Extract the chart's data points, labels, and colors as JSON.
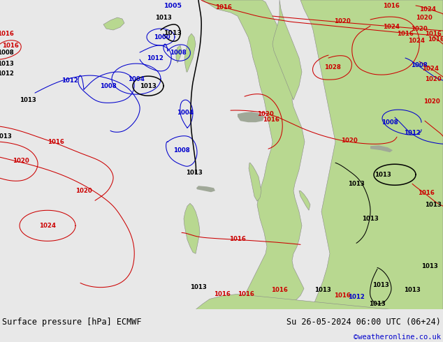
{
  "title_left": "Surface pressure [hPa] ECMWF",
  "title_right": "Su 26-05-2024 06:00 UTC (06+24)",
  "credit": "©weatheronline.co.uk",
  "bg_ocean": "#d8d8d8",
  "bg_land": "#b8d890",
  "bg_mountain": "#a0a898",
  "contour_low_color": "#0000cc",
  "contour_high_color": "#cc0000",
  "contour_13_color": "#000000",
  "footer_bg": "#e8e8e8",
  "footer_fontsize": 8.5,
  "credit_fontsize": 7.5,
  "credit_color": "#0000cc",
  "label_fs": 6.2
}
